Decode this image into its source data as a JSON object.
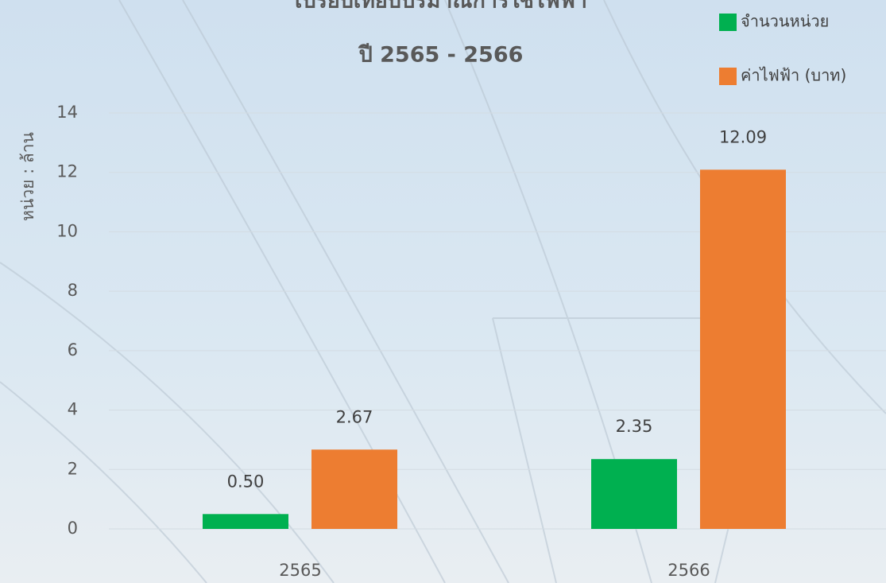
{
  "chart_data": {
    "type": "bar",
    "title": "เปรียบเทียบปริมาณการใช้ไฟฟ้า",
    "subtitle": "ปี 2565 - 2566",
    "y_label": "หน่วย : ล้าน",
    "categories": [
      "2565",
      "2566"
    ],
    "series": [
      {
        "name": "จำนวนหน่วย",
        "color": "#00b050",
        "values": [
          0.5,
          2.35
        ],
        "value_labels": [
          "0.50",
          "2.35"
        ]
      },
      {
        "name": "ค่าไฟฟ้า (บาท)",
        "color": "#ed7d31",
        "values": [
          2.67,
          12.09
        ],
        "value_labels": [
          "2.67",
          "12.09"
        ]
      }
    ],
    "ylim": [
      0,
      14
    ],
    "yticks": [
      0,
      2,
      4,
      6,
      8,
      10,
      12,
      14
    ],
    "grid": true,
    "legend": "top-right"
  }
}
